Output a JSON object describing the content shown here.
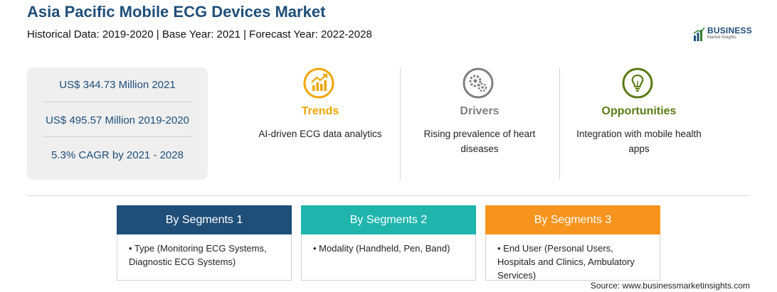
{
  "header": {
    "title": "Asia Pacific Mobile ECG Devices Market",
    "subtitle": "Historical Data: 2019-2020 | Base Year: 2021 | Forecast Year: 2022-2028"
  },
  "logo": {
    "brand": "BUSINESS",
    "tagline": "Market Insights",
    "icon": "bar-chart-globe-icon"
  },
  "stats": [
    {
      "text": "US$ 344.73 Million 2021"
    },
    {
      "text": "US$ 495.57 Million 2019-2020"
    },
    {
      "text": "5.3% CAGR by 2021 - 2028"
    }
  ],
  "features": [
    {
      "name": "Trends",
      "desc": "AI-driven ECG data analytics",
      "icon": "trending-chart-icon",
      "color": "#f0a500"
    },
    {
      "name": "Drivers",
      "desc": "Rising prevalence of heart diseases",
      "icon": "gears-icon",
      "color": "#7f7f7f"
    },
    {
      "name": "Opportunities",
      "desc": "Integration with mobile health apps",
      "icon": "lightbulb-icon",
      "color": "#5a7a14"
    }
  ],
  "segments": [
    {
      "title": "By Segments 1",
      "body": "• Type (Monitoring ECG Systems, Diagnostic ECG Systems)",
      "color": "#1f4e79"
    },
    {
      "title": "By Segments 2",
      "body": "• Modality (Handheld, Pen, Band)",
      "color": "#1fb5ad"
    },
    {
      "title": "By Segments 3",
      "body": "• End User (Personal Users, Hospitals and Clinics, Ambulatory Services)",
      "color": "#f7941d"
    }
  ],
  "footer": {
    "source": "Source: www.businessmarketinsights.com"
  }
}
